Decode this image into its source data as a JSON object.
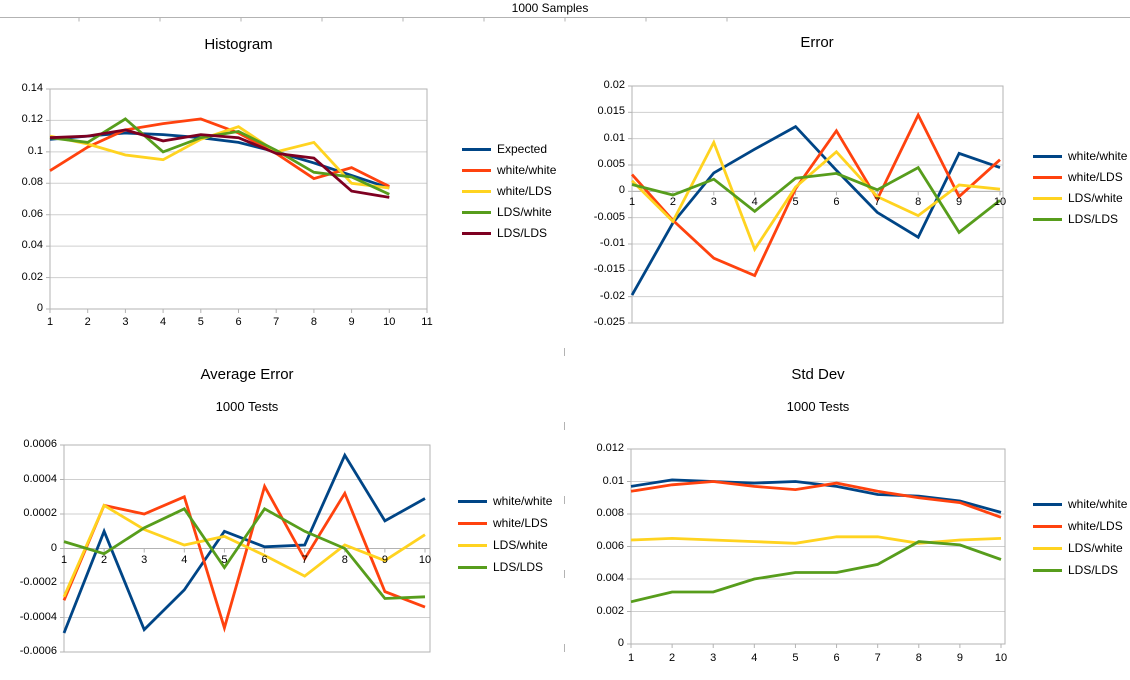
{
  "page": {
    "title": "1000 Samples"
  },
  "colors": {
    "blue": "#004586",
    "orange": "#FF420E",
    "yellow": "#FFD320",
    "green": "#579D1C",
    "maroon": "#7E0021",
    "grid": "#CFCFCF",
    "axis": "#B3B3B3",
    "text": "#000000"
  },
  "chart_data": [
    {
      "id": "histogram",
      "type": "line",
      "title": "Histogram",
      "subtitle": "",
      "categories": [
        1,
        2,
        3,
        4,
        5,
        6,
        7,
        8,
        9,
        10
      ],
      "xtick_labels": [
        "1",
        "2",
        "3",
        "4",
        "5",
        "6",
        "7",
        "8",
        "9",
        "10",
        "11"
      ],
      "ylim": [
        0,
        0.14
      ],
      "ytick_labels": [
        "0.14",
        "0.12",
        "0.1",
        "0.08",
        "0.06",
        "0.04",
        "0.02",
        "0"
      ],
      "grid": true,
      "legend_position": "right",
      "series": [
        {
          "name": "Expected",
          "color": "blue",
          "values": [
            0.108,
            0.11,
            0.112,
            0.111,
            0.109,
            0.106,
            0.1,
            0.093,
            0.085,
            0.077
          ]
        },
        {
          "name": "white/white",
          "color": "orange",
          "values": [
            0.088,
            0.103,
            0.114,
            0.118,
            0.121,
            0.112,
            0.099,
            0.083,
            0.09,
            0.078
          ]
        },
        {
          "name": "white/LDS",
          "color": "yellow",
          "values": [
            0.11,
            0.105,
            0.098,
            0.095,
            0.108,
            0.116,
            0.1,
            0.106,
            0.08,
            0.077
          ]
        },
        {
          "name": "LDS/white",
          "color": "green",
          "values": [
            0.109,
            0.106,
            0.121,
            0.1,
            0.109,
            0.113,
            0.101,
            0.087,
            0.084,
            0.073
          ]
        },
        {
          "name": "LDS/LDS",
          "color": "maroon",
          "values": [
            0.109,
            0.11,
            0.114,
            0.107,
            0.111,
            0.109,
            0.099,
            0.096,
            0.075,
            0.071
          ]
        }
      ]
    },
    {
      "id": "error",
      "type": "line",
      "title": "Error",
      "subtitle": "",
      "categories": [
        1,
        2,
        3,
        4,
        5,
        6,
        7,
        8,
        9,
        10
      ],
      "xtick_labels": [
        "1",
        "2",
        "3",
        "4",
        "5",
        "6",
        "7",
        "8",
        "9",
        "10"
      ],
      "ylim": [
        -0.025,
        0.02
      ],
      "ytick_labels": [
        "0.02",
        "0.015",
        "0.01",
        "0.005",
        "0",
        "-0.005",
        "-0.01",
        "-0.015",
        "-0.02",
        "-0.025"
      ],
      "grid": true,
      "legend_position": "right",
      "series": [
        {
          "name": "white/white",
          "color": "blue",
          "values": [
            -0.0197,
            -0.006,
            0.0035,
            0.008,
            0.0123,
            0.004,
            -0.004,
            -0.0087,
            0.0072,
            0.0045
          ]
        },
        {
          "name": "white/LDS",
          "color": "orange",
          "values": [
            0.0032,
            -0.0055,
            -0.0127,
            -0.016,
            0.0005,
            0.0115,
            -0.0015,
            0.0145,
            -0.001,
            0.006
          ]
        },
        {
          "name": "LDS/white",
          "color": "yellow",
          "values": [
            0.002,
            -0.0057,
            0.0093,
            -0.011,
            0.0008,
            0.0075,
            -0.001,
            -0.0046,
            0.0012,
            0.0004
          ]
        },
        {
          "name": "LDS/LDS",
          "color": "green",
          "values": [
            0.0013,
            -0.0007,
            0.0023,
            -0.0038,
            0.0025,
            0.0034,
            0.0003,
            0.0045,
            -0.0078,
            -0.0017
          ]
        }
      ]
    },
    {
      "id": "average-error",
      "type": "line",
      "title": "Average Error",
      "subtitle": "1000 Tests",
      "categories": [
        1,
        2,
        3,
        4,
        5,
        6,
        7,
        8,
        9,
        10
      ],
      "xtick_labels": [
        "1",
        "2",
        "3",
        "4",
        "5",
        "6",
        "7",
        "8",
        "9",
        "10"
      ],
      "ylim": [
        -0.0006,
        0.0006
      ],
      "ytick_labels": [
        "0.0006",
        "0.0004",
        "0.0002",
        "0",
        "-0.0002",
        "-0.0004",
        "-0.0006"
      ],
      "grid": true,
      "legend_position": "right",
      "series": [
        {
          "name": "white/white",
          "color": "blue",
          "values": [
            -0.00049,
            0.0001,
            -0.00047,
            -0.00024,
            0.0001,
            1e-05,
            2e-05,
            0.00054,
            0.00016,
            0.00029
          ]
        },
        {
          "name": "white/LDS",
          "color": "orange",
          "values": [
            -0.0003,
            0.00025,
            0.0002,
            0.0003,
            -0.00046,
            0.00036,
            -6e-05,
            0.00032,
            -0.00025,
            -0.00034
          ]
        },
        {
          "name": "LDS/white",
          "color": "yellow",
          "values": [
            -0.00028,
            0.00025,
            0.00011,
            2e-05,
            7e-05,
            -4e-05,
            -0.00016,
            2e-05,
            -7e-05,
            8e-05
          ]
        },
        {
          "name": "LDS/LDS",
          "color": "green",
          "values": [
            4e-05,
            -3e-05,
            0.00012,
            0.00023,
            -0.00011,
            0.00023,
            0.0001,
            0.0,
            -0.00029,
            -0.00028
          ]
        }
      ]
    },
    {
      "id": "std-dev",
      "type": "line",
      "title": "Std Dev",
      "subtitle": "1000 Tests",
      "categories": [
        1,
        2,
        3,
        4,
        5,
        6,
        7,
        8,
        9,
        10
      ],
      "xtick_labels": [
        "1",
        "2",
        "3",
        "4",
        "5",
        "6",
        "7",
        "8",
        "9",
        "10"
      ],
      "ylim": [
        0,
        0.012
      ],
      "ytick_labels": [
        "0.012",
        "0.01",
        "0.008",
        "0.006",
        "0.004",
        "0.002",
        "0"
      ],
      "grid": true,
      "legend_position": "right",
      "series": [
        {
          "name": "white/white",
          "color": "blue",
          "values": [
            0.0097,
            0.0101,
            0.01,
            0.0099,
            0.01,
            0.0097,
            0.0092,
            0.0091,
            0.0088,
            0.0081
          ]
        },
        {
          "name": "white/LDS",
          "color": "orange",
          "values": [
            0.0094,
            0.0098,
            0.01,
            0.0097,
            0.0095,
            0.0099,
            0.0094,
            0.009,
            0.0087,
            0.0078
          ]
        },
        {
          "name": "LDS/white",
          "color": "yellow",
          "values": [
            0.0064,
            0.0065,
            0.0064,
            0.0063,
            0.0062,
            0.0066,
            0.0066,
            0.0062,
            0.0064,
            0.0065
          ]
        },
        {
          "name": "LDS/LDS",
          "color": "green",
          "values": [
            0.0026,
            0.0032,
            0.0032,
            0.004,
            0.0044,
            0.0044,
            0.0049,
            0.0063,
            0.0061,
            0.0052
          ]
        }
      ]
    }
  ]
}
